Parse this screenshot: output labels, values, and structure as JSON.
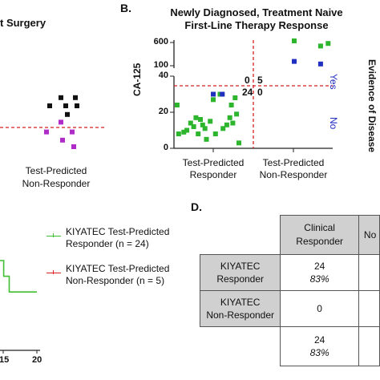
{
  "panel_a": {
    "title_fragment": "t Surgery",
    "x_category": "Test-Predicted Non-Responder",
    "x_category_line1": "Test-Predicted",
    "x_category_line2": "Non-Responder"
  },
  "panel_c": {
    "legend": [
      {
        "line1": "KIYATEC Test-Predicted",
        "line2": "Responder (n = 24)",
        "color": "#3fbf2f"
      },
      {
        "line1": "KIYATEC Test-Predicted",
        "line2": "Non-Responder (n = 5)",
        "color": "#e02020"
      }
    ],
    "x_ticks": [
      "15",
      "20"
    ]
  },
  "panel_b": {
    "letter": "B.",
    "title_line1": "Newly Diagnosed, Treatment Naive",
    "title_line2": "First-Line Therapy Response",
    "ylabel": "CA-125",
    "right_label": "Evidence of Disease",
    "yes_label": "Yes",
    "no_label": "No",
    "y_ticks_upper": [
      "600",
      "100"
    ],
    "y_ticks_lower": [
      "40",
      "20",
      "0"
    ],
    "quadrant_counts": {
      "top_left": "0",
      "top_right": "5",
      "bottom_left": "24",
      "bottom_right": "0"
    },
    "x_categories": [
      {
        "line1": "Test-Predicted",
        "line2": "Responder"
      },
      {
        "line1": "Test-Predicted",
        "line2": "Non-Responder"
      }
    ],
    "colors": {
      "green": "#2db52d",
      "blue": "#1f2fc0",
      "threshold": "#d42020"
    }
  },
  "panel_d": {
    "letter": "D.",
    "col_header_line1": "Clinical",
    "col_header_line2": "Responder",
    "col_header_cut": "No",
    "rows": [
      {
        "label_line1": "KIYATEC",
        "label_line2": "Responder",
        "count": "24",
        "pct": "83%"
      },
      {
        "label_line1": "KIYATEC",
        "label_line2": "Non-Responder",
        "count": "0",
        "pct": ""
      },
      {
        "label_line1": "",
        "label_line2": "",
        "count": "24",
        "pct": "83%"
      }
    ]
  },
  "chart_data": [
    {
      "type": "scatter",
      "title": "Newly Diagnosed, Treatment Naive First-Line Therapy Response",
      "xlabel": "",
      "ylabel": "CA-125",
      "categories": [
        "Test-Predicted Responder",
        "Test-Predicted Non-Responder"
      ],
      "ylim_lower": [
        0,
        40
      ],
      "ylim_upper": [
        40,
        600
      ],
      "threshold": 35,
      "series": [
        {
          "color": "#2db52d",
          "points": [
            {
              "cat": 0,
              "j": 0.02,
              "y": 24
            },
            {
              "cat": 0,
              "j": 0.04,
              "y": 8
            },
            {
              "cat": 0,
              "j": 0.11,
              "y": 9
            },
            {
              "cat": 0,
              "j": 0.15,
              "y": 10
            },
            {
              "cat": 0,
              "j": 0.2,
              "y": 14
            },
            {
              "cat": 0,
              "j": 0.24,
              "y": 12
            },
            {
              "cat": 0,
              "j": 0.27,
              "y": 17
            },
            {
              "cat": 0,
              "j": 0.3,
              "y": 8
            },
            {
              "cat": 0,
              "j": 0.33,
              "y": 16
            },
            {
              "cat": 0,
              "j": 0.36,
              "y": 13
            },
            {
              "cat": 0,
              "j": 0.39,
              "y": 11
            },
            {
              "cat": 0,
              "j": 0.41,
              "y": 5
            },
            {
              "cat": 0,
              "j": 0.46,
              "y": 15
            },
            {
              "cat": 0,
              "j": 0.5,
              "y": 27
            },
            {
              "cat": 0,
              "j": 0.53,
              "y": 8
            },
            {
              "cat": 0,
              "j": 0.59,
              "y": 30
            },
            {
              "cat": 0,
              "j": 0.63,
              "y": 11
            },
            {
              "cat": 0,
              "j": 0.68,
              "y": 13
            },
            {
              "cat": 0,
              "j": 0.72,
              "y": 17
            },
            {
              "cat": 0,
              "j": 0.74,
              "y": 24
            },
            {
              "cat": 0,
              "j": 0.76,
              "y": 14
            },
            {
              "cat": 0,
              "j": 0.79,
              "y": 28
            },
            {
              "cat": 0,
              "j": 0.81,
              "y": 19
            },
            {
              "cat": 0,
              "j": 0.84,
              "y": 3
            },
            {
              "cat": 1,
              "j": 0.5,
              "y": 600
            },
            {
              "cat": 1,
              "j": 0.85,
              "y": 500
            },
            {
              "cat": 1,
              "j": 0.95,
              "y": 550
            }
          ]
        },
        {
          "color": "#1f2fc0",
          "points": [
            {
              "cat": 0,
              "j": 0.5,
              "y": 30
            },
            {
              "cat": 0,
              "j": 0.62,
              "y": 30
            },
            {
              "cat": 1,
              "j": 0.5,
              "y": 200
            },
            {
              "cat": 1,
              "j": 0.85,
              "y": 150
            }
          ]
        }
      ]
    },
    {
      "type": "scatter",
      "title": "",
      "categories": [
        "Test-Predicted Non-Responder"
      ],
      "threshold_ratio": 0.42,
      "series": [
        {
          "color": "#111111",
          "points": [
            {
              "j": 0.1,
              "y": 0.93
            },
            {
              "j": 0.55,
              "y": 0.93
            },
            {
              "j": -0.25,
              "y": 0.78
            },
            {
              "j": 0.25,
              "y": 0.78
            },
            {
              "j": 0.6,
              "y": 0.78
            },
            {
              "j": 0.3,
              "y": 0.62
            }
          ]
        },
        {
          "color": "#b02cc8",
          "points": [
            {
              "j": 0.1,
              "y": 0.48
            },
            {
              "j": -0.35,
              "y": 0.3
            },
            {
              "j": 0.45,
              "y": 0.3
            },
            {
              "j": 0.15,
              "y": 0.15
            },
            {
              "j": 0.5,
              "y": 0.03
            }
          ]
        }
      ]
    },
    {
      "type": "line",
      "title": "",
      "x_ticks": [
        15,
        20
      ],
      "series": [
        {
          "name": "KIYATEC Test-Predicted Responder (n = 24)",
          "color": "#3fbf2f",
          "x": [
            0,
            2,
            2,
            5,
            5,
            20
          ],
          "y": [
            0.4,
            0.4,
            0.33,
            0.33,
            0.26,
            0.26
          ]
        }
      ]
    }
  ]
}
